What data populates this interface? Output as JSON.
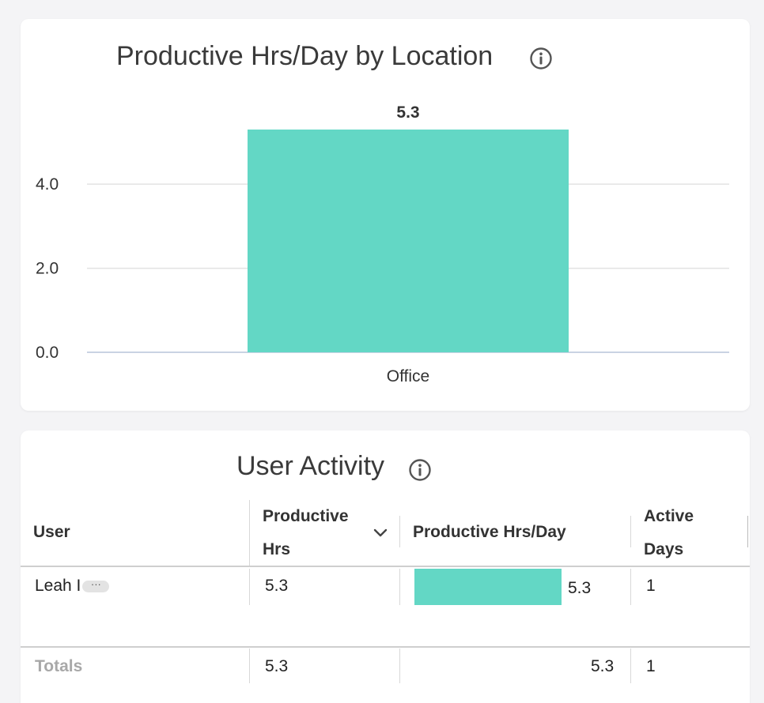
{
  "chart_card": {
    "title": "Productive Hrs/Day by Location",
    "info_icon": "info-icon"
  },
  "chart_data": {
    "type": "bar",
    "title": "Productive Hrs/Day by Location",
    "categories": [
      "Office"
    ],
    "values": [
      5.3
    ],
    "data_labels": [
      "5.3"
    ],
    "ylim": [
      0,
      5.3
    ],
    "yticks": [
      "0.0",
      "2.0",
      "4.0"
    ],
    "ytick_values": [
      0,
      2,
      4
    ],
    "xlabel": "",
    "ylabel": "",
    "grid": true,
    "bar_color": "#63d7c5"
  },
  "table_card": {
    "title": "User Activity",
    "info_icon": "info-icon",
    "columns": {
      "user": "User",
      "productive_hrs_line1": "Productive",
      "productive_hrs_line2": "Hrs",
      "productive_hrs_day": "Productive Hrs/Day",
      "active_days_line1": "Active",
      "active_days_line2": "Days"
    },
    "sort_icon": "chevron-down-icon",
    "rows": [
      {
        "user": "Leah I",
        "more": "···",
        "productive_hrs": "5.3",
        "productive_hrs_day": "5.3",
        "productive_hrs_day_fraction": 1.0,
        "active_days": "1"
      }
    ],
    "totals": {
      "label": "Totals",
      "productive_hrs": "5.3",
      "productive_hrs_day": "5.3",
      "active_days": "1"
    },
    "accent_color": "#63d7c5"
  }
}
